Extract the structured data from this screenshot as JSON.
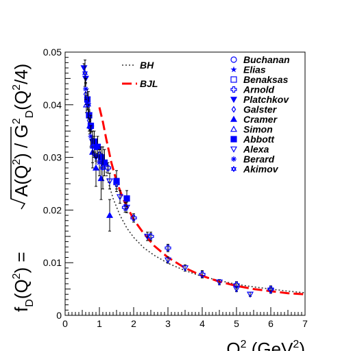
{
  "chart_data": {
    "type": "scatter",
    "xlabel_main": "Q",
    "xlabel_sup": "2",
    "xlabel_unit": " (GeV",
    "xlabel_unit_sup": "2",
    "xlabel_close": ")",
    "ylabel": "f_D(Q^2) = sqrt(A(Q^2)) / G_D^2(Q^2/4)",
    "xlim": [
      0,
      7
    ],
    "ylim": [
      0,
      0.05
    ],
    "x_ticks": [
      "0",
      "1",
      "2",
      "3",
      "4",
      "5",
      "6",
      "7"
    ],
    "y_ticks": [
      "0",
      "0.01",
      "0.02",
      "0.03",
      "0.04",
      "0.05"
    ],
    "curves": [
      {
        "name": "BH",
        "style": "dotted",
        "color": "#333333",
        "x": [
          1.1,
          1.25,
          1.4,
          1.6,
          1.8,
          2.0,
          2.3,
          2.6,
          3.0,
          3.5,
          4.0,
          4.5,
          5.0,
          5.5,
          6.0,
          6.5,
          7.0
        ],
        "y": [
          0.0305,
          0.0255,
          0.0222,
          0.019,
          0.0166,
          0.0148,
          0.0128,
          0.0114,
          0.0099,
          0.0085,
          0.0074,
          0.0066,
          0.0059,
          0.0054,
          0.005,
          0.0046,
          0.0043
        ]
      },
      {
        "name": "BJL",
        "style": "dashed",
        "color": "#ff0000",
        "x": [
          1.0,
          1.1,
          1.2,
          1.35,
          1.5,
          1.7,
          2.0,
          2.3,
          2.6,
          3.0,
          3.5,
          4.0,
          4.5,
          5.0,
          5.5,
          6.0,
          6.5,
          7.0
        ],
        "y": [
          0.0395,
          0.0368,
          0.0335,
          0.029,
          0.0255,
          0.022,
          0.0182,
          0.0155,
          0.0132,
          0.011,
          0.009,
          0.0075,
          0.0064,
          0.0056,
          0.005,
          0.0046,
          0.0042,
          0.004
        ]
      }
    ],
    "series": [
      {
        "name": "Buchanan",
        "marker": "circle-open"
      },
      {
        "name": "Elias",
        "marker": "star-small"
      },
      {
        "name": "Benaksas",
        "marker": "square-open"
      },
      {
        "name": "Arnold",
        "marker": "cross-open",
        "x": [
          1.0,
          1.25,
          1.5,
          1.75,
          2.0,
          2.5,
          3.0,
          4.0,
          5.0,
          6.0
        ],
        "y": [
          0.0305,
          0.028,
          0.025,
          0.0205,
          0.0185,
          0.015,
          0.0128,
          0.0078,
          0.0058,
          0.005
        ],
        "err": [
          0.0012,
          0.001,
          0.001,
          0.0009,
          0.0008,
          0.0008,
          0.0007,
          0.0007,
          0.0006,
          0.0006
        ]
      },
      {
        "name": "Platchkov",
        "marker": "triangle-down-filled",
        "x": [
          0.55,
          0.6,
          0.65,
          0.7,
          0.75,
          0.8,
          0.9
        ],
        "y": [
          0.047,
          0.045,
          0.041,
          0.038,
          0.0355,
          0.033,
          0.03
        ],
        "err": [
          0.0008,
          0.0008,
          0.0008,
          0.0007,
          0.0007,
          0.0007,
          0.0007
        ]
      },
      {
        "name": "Galster",
        "marker": "diamond-open",
        "x": [
          0.6,
          0.7,
          0.8
        ],
        "y": [
          0.042,
          0.037,
          0.033
        ],
        "err": [
          0.002,
          0.002,
          0.002
        ]
      },
      {
        "name": "Cramer",
        "marker": "triangle-up-filled",
        "x": [
          0.8,
          0.9,
          1.05,
          1.3
        ],
        "y": [
          0.031,
          0.028,
          0.026,
          0.019
        ],
        "err": [
          0.003,
          0.0035,
          0.004,
          0.003
        ]
      },
      {
        "name": "Simon",
        "marker": "triangle-up-open",
        "x": [
          0.62,
          0.72
        ],
        "y": [
          0.04,
          0.036
        ],
        "err": [
          0.0015,
          0.0015
        ]
      },
      {
        "name": "Abbott",
        "marker": "square-filled",
        "x": [
          0.65,
          0.7,
          0.75,
          0.85,
          0.95,
          1.05,
          1.15,
          1.5,
          1.8
        ],
        "y": [
          0.041,
          0.038,
          0.036,
          0.033,
          0.032,
          0.03,
          0.029,
          0.0255,
          0.0222
        ],
        "err": [
          0.002,
          0.002,
          0.002,
          0.002,
          0.002,
          0.002,
          0.0025,
          0.002,
          0.0015
        ]
      },
      {
        "name": "Alexa",
        "marker": "triangle-down-open",
        "x": [
          1.3,
          1.6,
          1.8,
          2.4,
          3.0,
          3.5,
          4.5,
          5.0,
          5.4,
          6.0
        ],
        "y": [
          0.0255,
          0.0225,
          0.0205,
          0.015,
          0.0105,
          0.009,
          0.0063,
          0.005,
          0.004,
          0.0047
        ],
        "err": [
          0.0015,
          0.0012,
          0.001,
          0.0008,
          0.0006,
          0.0006,
          0.0005,
          0.0005,
          0.0004,
          0.0005
        ]
      },
      {
        "name": "Berard",
        "marker": "asterisk",
        "x": [
          0.6,
          0.75,
          0.85,
          1.0
        ],
        "y": [
          0.043,
          0.034,
          0.032,
          0.029
        ],
        "err": [
          0.002,
          0.002,
          0.002,
          0.0025
        ]
      },
      {
        "name": "Akimov",
        "marker": "star-open",
        "x": [
          0.58,
          0.68,
          0.8,
          1.1
        ],
        "y": [
          0.046,
          0.04,
          0.032,
          0.028
        ],
        "err": [
          0.0025,
          0.0025,
          0.003,
          0.004
        ]
      }
    ]
  }
}
